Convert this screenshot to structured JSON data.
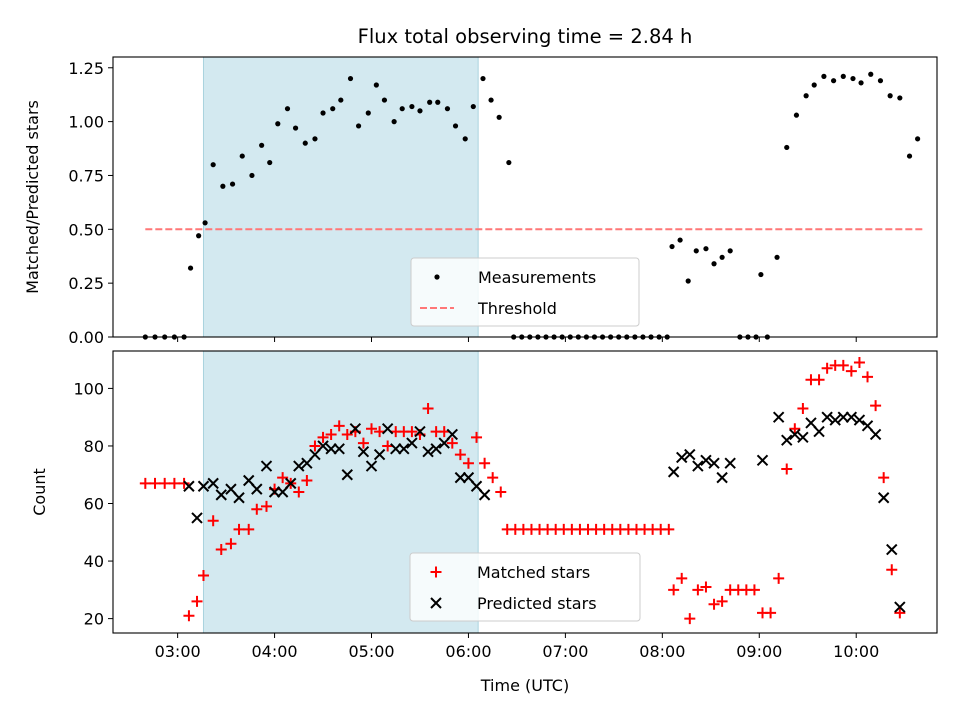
{
  "chart_data": [
    {
      "type": "scatter",
      "title": "Flux total observing time = 2.84 h",
      "xlabel": "",
      "ylabel": "Matched/Predicted stars",
      "ylim": [
        0,
        1.3
      ],
      "yticks": [
        "0.00",
        "0.25",
        "0.50",
        "0.75",
        "1.00",
        "1.25"
      ],
      "shaded_region": {
        "x": [
          "03:16",
          "06:06"
        ],
        "color": "#d3e9f0"
      },
      "series": [
        {
          "name": "Measurements",
          "marker": "dot",
          "color": "#000000",
          "points": [
            [
              "02:40",
              0.0
            ],
            [
              "02:46",
              0.0
            ],
            [
              "02:52",
              0.0
            ],
            [
              "02:58",
              0.0
            ],
            [
              "03:04",
              0.0
            ],
            [
              "03:08",
              0.32
            ],
            [
              "03:13",
              0.47
            ],
            [
              "03:17",
              0.53
            ],
            [
              "03:22",
              0.8
            ],
            [
              "03:28",
              0.7
            ],
            [
              "03:34",
              0.71
            ],
            [
              "03:40",
              0.84
            ],
            [
              "03:46",
              0.75
            ],
            [
              "03:52",
              0.89
            ],
            [
              "03:57",
              0.81
            ],
            [
              "04:02",
              0.99
            ],
            [
              "04:08",
              1.06
            ],
            [
              "04:13",
              0.97
            ],
            [
              "04:19",
              0.9
            ],
            [
              "04:25",
              0.92
            ],
            [
              "04:30",
              1.04
            ],
            [
              "04:36",
              1.06
            ],
            [
              "04:41",
              1.1
            ],
            [
              "04:47",
              1.2
            ],
            [
              "04:52",
              0.98
            ],
            [
              "04:58",
              1.04
            ],
            [
              "05:03",
              1.17
            ],
            [
              "05:08",
              1.1
            ],
            [
              "05:14",
              1.0
            ],
            [
              "05:19",
              1.06
            ],
            [
              "05:25",
              1.07
            ],
            [
              "05:30",
              1.05
            ],
            [
              "05:36",
              1.09
            ],
            [
              "05:41",
              1.09
            ],
            [
              "05:47",
              1.06
            ],
            [
              "05:52",
              0.98
            ],
            [
              "05:58",
              0.92
            ],
            [
              "06:03",
              1.07
            ],
            [
              "06:09",
              1.2
            ],
            [
              "06:14",
              1.1
            ],
            [
              "06:19",
              1.02
            ],
            [
              "06:25",
              0.81
            ],
            [
              "06:28",
              0.0
            ],
            [
              "06:33",
              0.0
            ],
            [
              "06:38",
              0.0
            ],
            [
              "06:43",
              0.0
            ],
            [
              "06:48",
              0.0
            ],
            [
              "06:53",
              0.0
            ],
            [
              "06:58",
              0.0
            ],
            [
              "07:03",
              0.0
            ],
            [
              "07:08",
              0.0
            ],
            [
              "07:13",
              0.0
            ],
            [
              "07:18",
              0.0
            ],
            [
              "07:23",
              0.0
            ],
            [
              "07:28",
              0.0
            ],
            [
              "07:33",
              0.0
            ],
            [
              "07:38",
              0.0
            ],
            [
              "07:43",
              0.0
            ],
            [
              "07:48",
              0.0
            ],
            [
              "07:53",
              0.0
            ],
            [
              "07:58",
              0.0
            ],
            [
              "08:03",
              0.0
            ],
            [
              "08:06",
              0.42
            ],
            [
              "08:11",
              0.45
            ],
            [
              "08:16",
              0.26
            ],
            [
              "08:21",
              0.4
            ],
            [
              "08:27",
              0.41
            ],
            [
              "08:32",
              0.34
            ],
            [
              "08:37",
              0.37
            ],
            [
              "08:42",
              0.4
            ],
            [
              "08:48",
              0.0
            ],
            [
              "08:53",
              0.0
            ],
            [
              "08:58",
              0.0
            ],
            [
              "09:01",
              0.29
            ],
            [
              "09:05",
              0.0
            ],
            [
              "09:11",
              0.37
            ],
            [
              "09:17",
              0.88
            ],
            [
              "09:23",
              1.03
            ],
            [
              "09:29",
              1.12
            ],
            [
              "09:34",
              1.17
            ],
            [
              "09:40",
              1.21
            ],
            [
              "09:46",
              1.19
            ],
            [
              "09:52",
              1.21
            ],
            [
              "09:58",
              1.2
            ],
            [
              "10:03",
              1.18
            ],
            [
              "10:09",
              1.22
            ],
            [
              "10:15",
              1.19
            ],
            [
              "10:21",
              1.12
            ],
            [
              "10:27",
              1.11
            ],
            [
              "10:33",
              0.84
            ],
            [
              "10:38",
              0.92
            ]
          ]
        },
        {
          "name": "Threshold",
          "marker": "dashed-line",
          "color": "#ff7777",
          "points": [
            [
              "02:40",
              0.5
            ],
            [
              "10:42",
              0.5
            ]
          ]
        }
      ]
    },
    {
      "type": "scatter",
      "title": "",
      "xlabel": "Time (UTC)",
      "ylabel": "Count",
      "ylim": [
        15,
        113
      ],
      "yticks": [
        "20",
        "40",
        "60",
        "80",
        "100"
      ],
      "xticks": [
        "03:00",
        "04:00",
        "05:00",
        "06:00",
        "07:00",
        "08:00",
        "09:00",
        "10:00"
      ],
      "xlim": [
        "02:20",
        "10:50"
      ],
      "shaded_region": {
        "x": [
          "03:16",
          "06:06"
        ],
        "color": "#d3e9f0"
      },
      "series": [
        {
          "name": "Matched stars",
          "marker": "plus",
          "color": "#ff0000",
          "points": [
            [
              "02:40",
              67
            ],
            [
              "02:46",
              67
            ],
            [
              "02:52",
              67
            ],
            [
              "02:58",
              67
            ],
            [
              "03:04",
              67
            ],
            [
              "03:07",
              21
            ],
            [
              "03:12",
              26
            ],
            [
              "03:16",
              35
            ],
            [
              "03:22",
              54
            ],
            [
              "03:27",
              44
            ],
            [
              "03:33",
              46
            ],
            [
              "03:38",
              51
            ],
            [
              "03:44",
              51
            ],
            [
              "03:49",
              58
            ],
            [
              "03:55",
              59
            ],
            [
              "04:00",
              65
            ],
            [
              "04:05",
              69
            ],
            [
              "04:10",
              67
            ],
            [
              "04:15",
              64
            ],
            [
              "04:20",
              68
            ],
            [
              "04:25",
              80
            ],
            [
              "04:30",
              83
            ],
            [
              "04:35",
              84
            ],
            [
              "04:40",
              87
            ],
            [
              "04:45",
              84
            ],
            [
              "04:50",
              85
            ],
            [
              "04:55",
              81
            ],
            [
              "05:00",
              86
            ],
            [
              "05:05",
              85
            ],
            [
              "05:10",
              80
            ],
            [
              "05:15",
              85
            ],
            [
              "05:20",
              85
            ],
            [
              "05:25",
              85
            ],
            [
              "05:30",
              84
            ],
            [
              "05:35",
              93
            ],
            [
              "05:40",
              85
            ],
            [
              "05:45",
              85
            ],
            [
              "05:50",
              81
            ],
            [
              "05:55",
              77
            ],
            [
              "06:00",
              74
            ],
            [
              "06:05",
              83
            ],
            [
              "06:10",
              74
            ],
            [
              "06:15",
              69
            ],
            [
              "06:20",
              64
            ],
            [
              "06:24",
              51
            ],
            [
              "06:29",
              51
            ],
            [
              "06:34",
              51
            ],
            [
              "06:39",
              51
            ],
            [
              "06:44",
              51
            ],
            [
              "06:49",
              51
            ],
            [
              "06:54",
              51
            ],
            [
              "06:59",
              51
            ],
            [
              "07:04",
              51
            ],
            [
              "07:09",
              51
            ],
            [
              "07:14",
              51
            ],
            [
              "07:19",
              51
            ],
            [
              "07:24",
              51
            ],
            [
              "07:29",
              51
            ],
            [
              "07:34",
              51
            ],
            [
              "07:39",
              51
            ],
            [
              "07:44",
              51
            ],
            [
              "07:49",
              51
            ],
            [
              "07:54",
              51
            ],
            [
              "07:59",
              51
            ],
            [
              "08:04",
              51
            ],
            [
              "08:07",
              30
            ],
            [
              "08:12",
              34
            ],
            [
              "08:17",
              20
            ],
            [
              "08:22",
              30
            ],
            [
              "08:27",
              31
            ],
            [
              "08:32",
              25
            ],
            [
              "08:37",
              26
            ],
            [
              "08:42",
              30
            ],
            [
              "08:47",
              30
            ],
            [
              "08:52",
              30
            ],
            [
              "08:57",
              30
            ],
            [
              "09:02",
              22
            ],
            [
              "09:07",
              22
            ],
            [
              "09:12",
              34
            ],
            [
              "09:17",
              72
            ],
            [
              "09:22",
              86
            ],
            [
              "09:27",
              93
            ],
            [
              "09:32",
              103
            ],
            [
              "09:37",
              103
            ],
            [
              "09:42",
              107
            ],
            [
              "09:47",
              108
            ],
            [
              "09:52",
              108
            ],
            [
              "09:57",
              106
            ],
            [
              "10:02",
              109
            ],
            [
              "10:07",
              104
            ],
            [
              "10:12",
              94
            ],
            [
              "10:17",
              69
            ],
            [
              "10:22",
              37
            ],
            [
              "10:27",
              22
            ]
          ]
        },
        {
          "name": "Predicted stars",
          "marker": "x",
          "color": "#000000",
          "points": [
            [
              "03:07",
              66
            ],
            [
              "03:12",
              55
            ],
            [
              "03:16",
              66
            ],
            [
              "03:22",
              67
            ],
            [
              "03:27",
              63
            ],
            [
              "03:33",
              65
            ],
            [
              "03:38",
              62
            ],
            [
              "03:44",
              68
            ],
            [
              "03:49",
              65
            ],
            [
              "03:55",
              73
            ],
            [
              "04:00",
              64
            ],
            [
              "04:05",
              64
            ],
            [
              "04:10",
              67
            ],
            [
              "04:15",
              73
            ],
            [
              "04:20",
              74
            ],
            [
              "04:25",
              77
            ],
            [
              "04:30",
              80
            ],
            [
              "04:35",
              79
            ],
            [
              "04:40",
              79
            ],
            [
              "04:45",
              70
            ],
            [
              "04:50",
              86
            ],
            [
              "04:55",
              78
            ],
            [
              "05:00",
              73
            ],
            [
              "05:05",
              77
            ],
            [
              "05:10",
              86
            ],
            [
              "05:15",
              79
            ],
            [
              "05:20",
              79
            ],
            [
              "05:25",
              81
            ],
            [
              "05:30",
              85
            ],
            [
              "05:35",
              78
            ],
            [
              "05:40",
              79
            ],
            [
              "05:45",
              81
            ],
            [
              "05:50",
              84
            ],
            [
              "05:55",
              69
            ],
            [
              "06:00",
              69
            ],
            [
              "06:05",
              66
            ],
            [
              "06:10",
              63
            ],
            [
              "08:07",
              71
            ],
            [
              "08:12",
              76
            ],
            [
              "08:17",
              77
            ],
            [
              "08:22",
              73
            ],
            [
              "08:27",
              75
            ],
            [
              "08:32",
              74
            ],
            [
              "08:37",
              69
            ],
            [
              "08:42",
              74
            ],
            [
              "09:02",
              75
            ],
            [
              "09:12",
              90
            ],
            [
              "09:17",
              82
            ],
            [
              "09:22",
              84
            ],
            [
              "09:27",
              83
            ],
            [
              "09:32",
              88
            ],
            [
              "09:37",
              85
            ],
            [
              "09:42",
              90
            ],
            [
              "09:47",
              89
            ],
            [
              "09:52",
              90
            ],
            [
              "09:57",
              90
            ],
            [
              "10:02",
              89
            ],
            [
              "10:07",
              87
            ],
            [
              "10:12",
              84
            ],
            [
              "10:17",
              62
            ],
            [
              "10:22",
              44
            ],
            [
              "10:27",
              24
            ]
          ]
        }
      ]
    }
  ]
}
